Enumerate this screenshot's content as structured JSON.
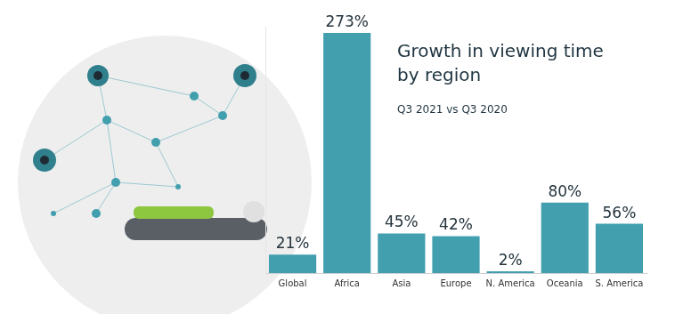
{
  "chart_data": {
    "type": "bar",
    "title": "Growth in viewing time by region",
    "subtitle": "Q3 2021 vs Q3 2020",
    "categories": [
      "Global",
      "Africa",
      "Asia",
      "Europe",
      "N. America",
      "Oceania",
      "S. America"
    ],
    "values": [
      21,
      273,
      45,
      42,
      2,
      80,
      56
    ],
    "value_labels": [
      "21%",
      "273%",
      "45%",
      "42%",
      "2%",
      "80%",
      "56%"
    ],
    "color": "#419fae",
    "ylim": [
      0,
      280
    ],
    "grid": false,
    "data_labels": true,
    "tick_labels": "x"
  }
}
